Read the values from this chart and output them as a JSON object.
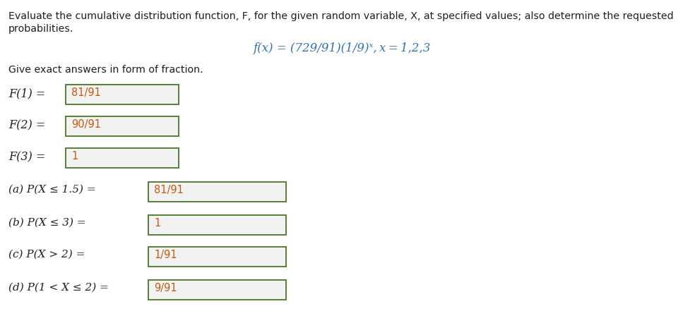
{
  "title_line1": "Evaluate the cumulative distribution function, F, for the given random variable, X, at specified values; also determine the requested",
  "title_line2": "probabilities.",
  "formula": "f(x) = (729/91)(1/9)ˣ, x = 1,2,3",
  "give_exact": "Give exact answers in form of fraction.",
  "rows": [
    {
      "label": "F(1) =",
      "value": "81/91"
    },
    {
      "label": "F(2) =",
      "value": "90/91"
    },
    {
      "label": "F(3) =",
      "value": "1"
    }
  ],
  "probs": [
    {
      "label": "(a) P(X ≤ 1.5) =",
      "value": "81/91"
    },
    {
      "label": "(b) P(X ≤ 3) =",
      "value": "1"
    },
    {
      "label": "(c) P(X > 2) =",
      "value": "1/91"
    },
    {
      "label": "(d) P(1 < X ≤ 2) =",
      "value": "9/91"
    }
  ],
  "text_color_black": "#1F1F1F",
  "text_color_blue": "#2E74B5",
  "text_color_orange": "#C55A11",
  "text_color_give": "#1F1F1F",
  "box_bg": "#F2F2F2",
  "box_edge": "#538135",
  "bg_color": "#FFFFFF",
  "fig_w": 9.67,
  "fig_h": 4.58,
  "dpi": 100
}
